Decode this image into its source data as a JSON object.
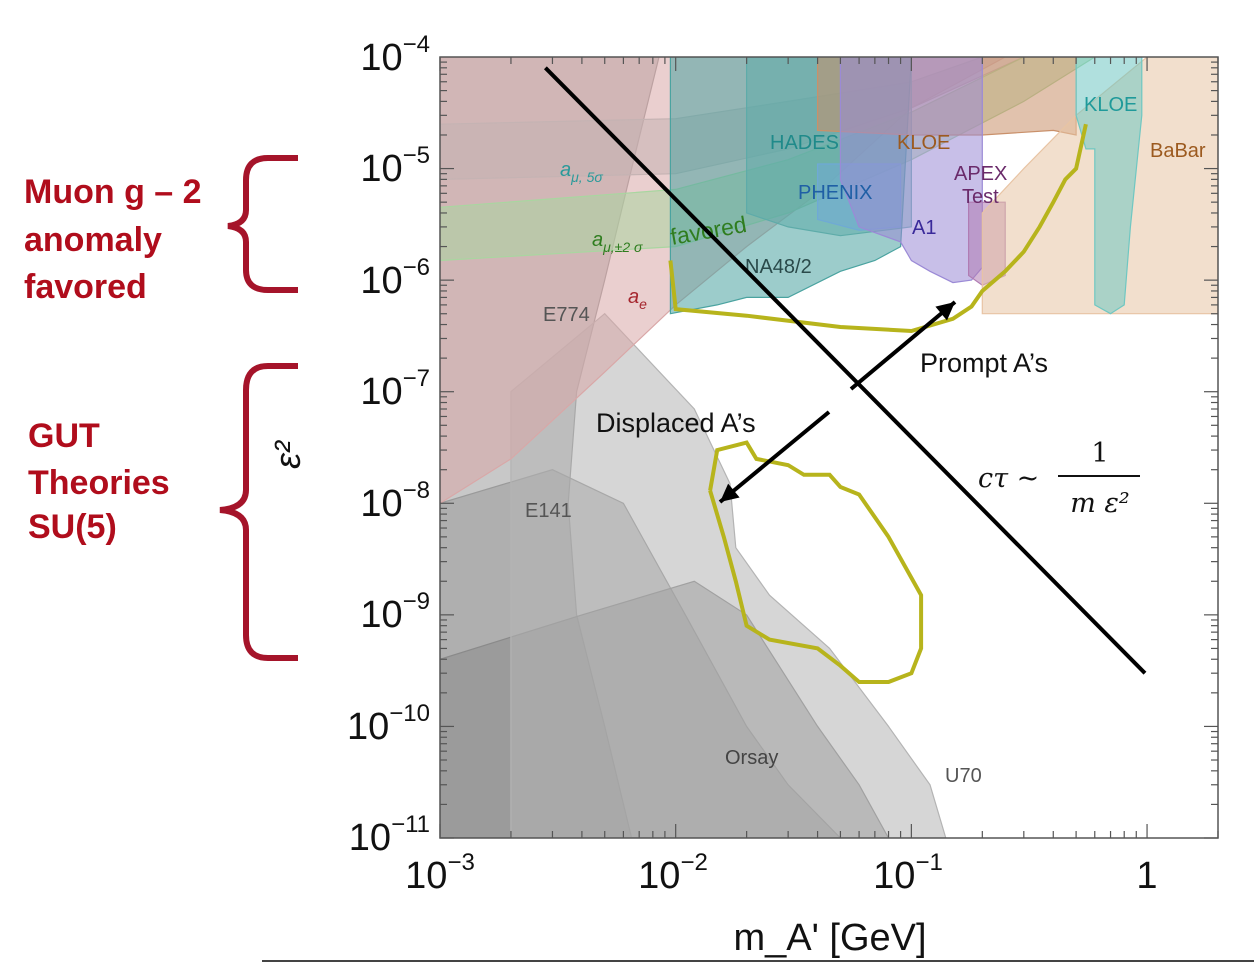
{
  "chart_data": {
    "type": "area",
    "xlabel": "m_A' [GeV]",
    "ylabel": "ε²",
    "xscale": "log",
    "yscale": "log",
    "xlim": [
      0.001,
      2.0
    ],
    "ylim": [
      1e-11,
      0.0001
    ],
    "x_tick_labels": [
      "10⁻³",
      "10⁻²",
      "10⁻¹",
      "1"
    ],
    "y_tick_labels": [
      "10⁻⁴",
      "10⁻⁵",
      "10⁻⁶",
      "10⁻⁷",
      "10⁻⁸",
      "10⁻⁹",
      "10⁻¹⁰",
      "10⁻¹¹"
    ],
    "grid": false,
    "regions": [
      {
        "name": "E774",
        "color": "#9a9a9a",
        "points": [
          [
            0.001,
            0.0001
          ],
          [
            0.001,
            1e-11
          ],
          [
            0.0065,
            1e-11
          ],
          [
            0.005,
            1e-10
          ],
          [
            0.0038,
            1e-09
          ],
          [
            0.0035,
            1e-08
          ],
          [
            0.0038,
            1e-07
          ],
          [
            0.005,
            1e-06
          ],
          [
            0.0065,
            1e-05
          ],
          [
            0.0085,
            0.0001
          ]
        ]
      },
      {
        "name": "E141",
        "color": "#9a9a9a",
        "points": [
          [
            0.001,
            1e-11
          ],
          [
            0.05,
            1e-11
          ],
          [
            0.03,
            3e-11
          ],
          [
            0.02,
            1e-10
          ],
          [
            0.011,
            1e-09
          ],
          [
            0.006,
            1e-08
          ],
          [
            0.003,
            2e-08
          ],
          [
            0.001,
            1e-08
          ]
        ]
      },
      {
        "name": "Orsay",
        "color": "#8a8a8a",
        "points": [
          [
            0.001,
            1e-11
          ],
          [
            0.08,
            1e-11
          ],
          [
            0.06,
            3e-11
          ],
          [
            0.04,
            1e-10
          ],
          [
            0.02,
            1e-09
          ],
          [
            0.012,
            2e-09
          ],
          [
            0.004,
            1e-09
          ],
          [
            0.001,
            4e-10
          ]
        ]
      },
      {
        "name": "U70",
        "color": "#b4b4b4",
        "points": [
          [
            0.002,
            1e-11
          ],
          [
            0.14,
            1e-11
          ],
          [
            0.12,
            3e-11
          ],
          [
            0.08,
            1e-10
          ],
          [
            0.045,
            5e-10
          ],
          [
            0.025,
            1.5e-09
          ],
          [
            0.018,
            4e-09
          ],
          [
            0.017,
            1.5e-08
          ],
          [
            0.012,
            7e-08
          ],
          [
            0.005,
            5e-07
          ],
          [
            0.002,
            1e-07
          ]
        ]
      },
      {
        "name": "a_e",
        "color": "#d9a7a7",
        "points": [
          [
            0.001,
            0.0001
          ],
          [
            0.001,
            1e-08
          ],
          [
            0.002,
            2.5e-08
          ],
          [
            0.005,
            1.5e-07
          ],
          [
            0.01,
            6e-07
          ],
          [
            0.02,
            2e-06
          ],
          [
            0.04,
            6e-06
          ],
          [
            0.1,
            3.5e-05
          ],
          [
            0.25,
            0.0001
          ]
        ]
      },
      {
        "name": "a_μ,5σ",
        "color": "#c5b3b3",
        "points": [
          [
            0.001,
            8e-06
          ],
          [
            0.01,
            9e-06
          ],
          [
            0.03,
            1.5e-05
          ],
          [
            0.1,
            3.5e-05
          ],
          [
            0.3,
            0.0001
          ],
          [
            0.2,
            0.0001
          ],
          [
            0.1,
            6e-05
          ],
          [
            0.03,
            4e-05
          ],
          [
            0.01,
            2.8e-05
          ],
          [
            0.001,
            2.5e-05
          ]
        ]
      },
      {
        "name": "a_μ,±2σ favored",
        "color": "#a9d6a0",
        "points": [
          [
            0.001,
            1.5e-06
          ],
          [
            0.01,
            2e-06
          ],
          [
            0.03,
            4e-06
          ],
          [
            0.1,
            1.2e-05
          ],
          [
            0.3,
            4e-05
          ],
          [
            0.6,
            0.0001
          ],
          [
            0.3,
            0.0001
          ],
          [
            0.1,
            3.2e-05
          ],
          [
            0.03,
            1.2e-05
          ],
          [
            0.01,
            6.5e-06
          ],
          [
            0.001,
            4.5e-06
          ]
        ]
      },
      {
        "name": "HADES",
        "color": "#75b7b3",
        "points": [
          [
            0.02,
            0.0001
          ],
          [
            0.02,
            4e-06
          ],
          [
            0.03,
            3e-06
          ],
          [
            0.05,
            2.5e-06
          ],
          [
            0.1,
            3e-06
          ],
          [
            0.1,
            0.0001
          ]
        ]
      },
      {
        "name": "NA48/2",
        "color": "#4aa3a0",
        "points": [
          [
            0.0095,
            0.0001
          ],
          [
            0.0095,
            5e-07
          ],
          [
            0.015,
            6e-07
          ],
          [
            0.02,
            7e-07
          ],
          [
            0.03,
            7e-07
          ],
          [
            0.05,
            1.2e-06
          ],
          [
            0.07,
            1.5e-06
          ],
          [
            0.09,
            2e-06
          ],
          [
            0.1,
            0.0001
          ]
        ]
      },
      {
        "name": "PHENIX",
        "color": "#6fa9d6",
        "points": [
          [
            0.04,
            1.1e-05
          ],
          [
            0.04,
            3.5e-06
          ],
          [
            0.06,
            2.8e-06
          ],
          [
            0.09,
            3e-06
          ],
          [
            0.09,
            1.1e-05
          ]
        ]
      },
      {
        "name": "KLOE",
        "color": "#c9906a",
        "points": [
          [
            0.04,
            0.0001
          ],
          [
            0.04,
            2.2e-05
          ],
          [
            0.1,
            2e-05
          ],
          [
            0.2,
            2e-05
          ],
          [
            0.4,
            2.2e-05
          ],
          [
            0.5,
            2e-05
          ],
          [
            0.5,
            0.0001
          ]
        ]
      },
      {
        "name": "A1",
        "color": "#9b8ad6",
        "points": [
          [
            0.05,
            8e-06
          ],
          [
            0.06,
            3e-06
          ],
          [
            0.09,
            2.2e-06
          ],
          [
            0.1,
            1.5e-06
          ],
          [
            0.12,
            1.2e-06
          ],
          [
            0.15,
            9.5e-07
          ],
          [
            0.18,
            1e-06
          ],
          [
            0.2,
            1.3e-06
          ],
          [
            0.2,
            0.0001
          ],
          [
            0.05,
            0.0001
          ]
        ]
      },
      {
        "name": "APEX Test",
        "color": "#b07cb3",
        "points": [
          [
            0.175,
            5e-06
          ],
          [
            0.175,
            1.1e-06
          ],
          [
            0.2,
            9e-07
          ],
          [
            0.25,
            1.1e-06
          ],
          [
            0.25,
            5e-06
          ]
        ]
      },
      {
        "name": "BaBar",
        "color": "#e8c4a4",
        "points": [
          [
            0.2,
            4e-06
          ],
          [
            0.2,
            5e-07
          ],
          [
            0.5,
            5e-07
          ],
          [
            1.0,
            5e-07
          ],
          [
            2.0,
            5e-07
          ],
          [
            2.0,
            0.0001
          ],
          [
            1.0,
            0.0001
          ],
          [
            0.5,
            3e-05
          ],
          [
            0.3,
            1e-05
          ]
        ]
      },
      {
        "name": "KLOE",
        "color": "#6fc7c2",
        "points": [
          [
            0.5,
            3e-05
          ],
          [
            0.55,
            1.5e-05
          ],
          [
            0.6,
            1.5e-05
          ],
          [
            0.6,
            6e-07
          ],
          [
            0.7,
            5e-07
          ],
          [
            0.8,
            6e-07
          ],
          [
            0.85,
            3e-06
          ],
          [
            0.95,
            3e-05
          ],
          [
            0.95,
            0.0001
          ],
          [
            0.5,
            0.0001
          ]
        ]
      }
    ],
    "curves": [
      {
        "name": "prompt-reach",
        "color": "#b7b41c",
        "points": [
          [
            0.0095,
            1.5e-06
          ],
          [
            0.01,
            5.5e-07
          ],
          [
            0.02,
            4.8e-07
          ],
          [
            0.05,
            3.8e-07
          ],
          [
            0.1,
            3.5e-07
          ],
          [
            0.15,
            4.5e-07
          ],
          [
            0.18,
            5.8e-07
          ],
          [
            0.2,
            8e-07
          ],
          [
            0.25,
            1.2e-06
          ],
          [
            0.3,
            1.8e-06
          ],
          [
            0.35,
            3e-06
          ],
          [
            0.4,
            5e-06
          ],
          [
            0.45,
            8e-06
          ],
          [
            0.5,
            1e-05
          ],
          [
            0.55,
            2.5e-05
          ]
        ]
      },
      {
        "name": "displaced-reach",
        "color": "#b7b41c",
        "points": [
          [
            0.014,
            1.3e-08
          ],
          [
            0.015,
            3e-08
          ],
          [
            0.02,
            3.5e-08
          ],
          [
            0.022,
            2.5e-08
          ],
          [
            0.03,
            2.2e-08
          ],
          [
            0.035,
            1.8e-08
          ],
          [
            0.045,
            1.8e-08
          ],
          [
            0.05,
            1.4e-08
          ],
          [
            0.06,
            1.2e-08
          ],
          [
            0.08,
            5e-09
          ],
          [
            0.11,
            1.5e-09
          ],
          [
            0.11,
            5e-10
          ],
          [
            0.1,
            3e-10
          ],
          [
            0.08,
            2.5e-10
          ],
          [
            0.06,
            2.5e-10
          ],
          [
            0.05,
            3.5e-10
          ],
          [
            0.04,
            5e-10
          ],
          [
            0.025,
            6e-10
          ],
          [
            0.02,
            8e-10
          ],
          [
            0.018,
            2e-09
          ],
          [
            0.016,
            5e-09
          ],
          [
            0.014,
            1.3e-08
          ]
        ]
      }
    ],
    "lines": [
      {
        "name": "lifetime-line",
        "color": "#000000",
        "x": [
          0.0028,
          0.98
        ],
        "y": [
          8e-05,
          3e-10
        ]
      }
    ],
    "labels": {
      "e774": "E774",
      "e141": "E141",
      "orsay": "Orsay",
      "u70": "U70",
      "a_e_main": "a",
      "a_e_sub": "e",
      "amu5_main": "a",
      "amu5_sub": "μ, 5σ",
      "amu2_main": "a",
      "amu2_sub": "μ,±2 σ",
      "favored": "favored",
      "hades": "HADES",
      "kloe1": "KLOE",
      "kloe2": "KLOE",
      "phenix": "PHENIX",
      "a1": "A1",
      "apex1": "APEX",
      "apex2": "Test",
      "babar": "BaBar",
      "na48": "NA48/2"
    }
  },
  "annotations": {
    "muon_line1": "Muon g – 2",
    "muon_line2": "anomaly",
    "muon_line3": "favored",
    "gut_line1": "GUT",
    "gut_line2": "Theories",
    "gut_line3": "SU(5)",
    "prompt": "Prompt A’s",
    "displaced": "Displaced A’s",
    "formula_lhs": "cτ ~",
    "formula_num": "1",
    "formula_den": "m ε²"
  },
  "colors": {
    "side_label": "#b00d1c",
    "reach_curve": "#b7b41c"
  }
}
